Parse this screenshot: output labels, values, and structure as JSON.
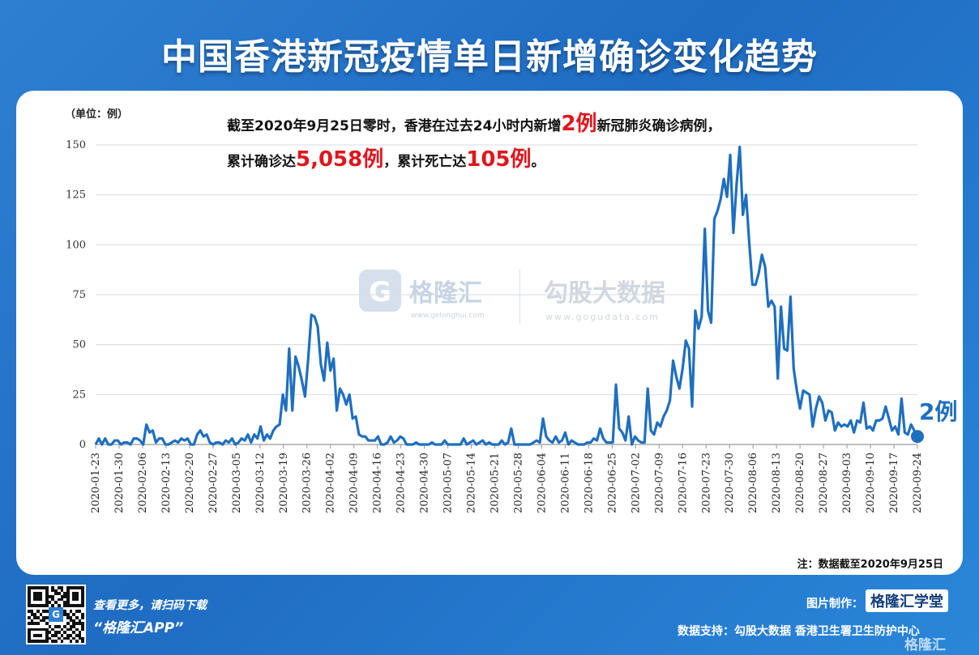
{
  "title": "中国香港新冠疫情单日新增确诊变化趋势",
  "unit_label": "（单位：例）",
  "headline": {
    "line1_pre": "截至2020年9月25日零时，香港在过去24小时内新增",
    "line1_hl": "2例",
    "line1_post": "新冠肺炎确诊病例，",
    "line2_pre": "累计确诊达",
    "line2_hl1": "5,058例",
    "line2_mid": "，累计死亡达",
    "line2_hl2": "105例",
    "line2_post": "。"
  },
  "note": "注：数据截至2020年9月25日",
  "watermark": {
    "g": "G",
    "brand1": "格隆汇",
    "brand1_sub": "www.gelonghui.com",
    "brand2": "勾股大数据",
    "brand2_sub": "www.gogudata.com"
  },
  "footer": {
    "line1": "查看更多，请扫码下载",
    "line2": "“格隆汇APP”",
    "credit_label": "图片制作：",
    "credit_logo": "格隆汇学堂",
    "support": "数据支持：勾股大数据  香港卫生署卫生防护中心",
    "corner": "格隆汇",
    "qr_mark": "G"
  },
  "colors": {
    "line": "#1f6fbf",
    "grid": "#d6dbe2",
    "highlight": "#e0161e",
    "background": "#2e7fd2"
  },
  "chart_data": {
    "type": "line",
    "title": "中国香港新冠疫情单日新增确诊变化趋势",
    "ylabel": "（单位：例）",
    "ylim": [
      0,
      150
    ],
    "yticks": [
      0,
      25,
      50,
      75,
      100,
      125,
      150
    ],
    "xticks": [
      "2020-01-23",
      "2020-01-30",
      "2020-02-06",
      "2020-02-13",
      "2020-02-20",
      "2020-02-27",
      "2020-03-05",
      "2020-03-12",
      "2020-03-19",
      "2020-03-26",
      "2020-04-02",
      "2020-04-09",
      "2020-04-16",
      "2020-04-23",
      "2020-04-30",
      "2020-05-07",
      "2020-05-14",
      "2020-05-21",
      "2020-05-28",
      "2020-06-04",
      "2020-06-11",
      "2020-06-18",
      "2020-06-25",
      "2020-07-02",
      "2020-07-09",
      "2020-07-16",
      "2020-07-23",
      "2020-07-30",
      "2020-08-06",
      "2020-08-13",
      "2020-08-20",
      "2020-08-27",
      "2020-09-03",
      "2020-09-10",
      "2020-09-17",
      "2020-09-24"
    ],
    "x_start": "2020-01-23",
    "x_end": "2020-09-24",
    "grid": true,
    "series": [
      {
        "values": [
          0,
          3,
          0,
          3,
          0,
          0,
          2,
          2,
          0,
          1,
          1,
          0,
          3,
          3,
          2,
          0,
          10,
          6,
          7,
          1,
          3,
          3,
          0,
          0,
          1,
          2,
          1,
          3,
          2,
          3,
          0,
          0,
          5,
          7,
          4,
          5,
          1,
          0,
          1,
          1,
          0,
          2,
          1,
          3,
          0,
          1,
          3,
          2,
          5,
          1,
          5,
          3,
          9,
          2,
          5,
          3,
          7,
          9,
          10,
          25,
          17,
          48,
          17,
          44,
          39,
          32,
          24,
          43,
          65,
          64,
          59,
          40,
          32,
          51,
          37,
          43,
          17,
          28,
          25,
          20,
          25,
          13,
          14,
          5,
          4,
          4,
          2,
          2,
          2,
          4,
          0,
          0,
          1,
          4,
          1,
          2,
          4,
          3,
          0,
          0,
          0,
          1,
          0,
          0,
          0,
          0,
          1,
          0,
          0,
          0,
          2,
          0,
          0,
          0,
          0,
          0,
          3,
          0,
          1,
          2,
          0,
          1,
          2,
          0,
          1,
          0,
          0,
          0,
          2,
          0,
          1,
          8,
          0,
          0,
          0,
          0,
          0,
          0,
          1,
          2,
          1,
          13,
          4,
          2,
          1,
          4,
          1,
          2,
          6,
          0,
          2,
          1,
          0,
          0,
          0,
          1,
          1,
          3,
          2,
          8,
          3,
          1,
          1,
          1,
          30,
          8,
          6,
          2,
          14,
          0,
          4,
          2,
          1,
          1,
          28,
          7,
          5,
          11,
          9,
          14,
          17,
          22,
          42,
          34,
          28,
          38,
          52,
          48,
          19,
          67,
          58,
          64,
          108,
          67,
          61,
          113,
          117,
          123,
          133,
          124,
          145,
          106,
          130,
          149,
          115,
          125,
          101,
          80,
          80,
          86,
          95,
          89,
          69,
          72,
          69,
          33,
          69,
          48,
          47,
          74,
          38,
          27,
          18,
          27,
          26,
          25,
          9,
          18,
          24,
          21,
          12,
          17,
          16,
          7,
          11,
          9,
          10,
          9,
          12,
          6,
          12,
          11,
          21,
          8,
          9,
          7,
          12,
          12,
          13,
          19,
          13,
          7,
          9,
          5,
          23,
          6,
          5,
          10,
          7,
          2
        ]
      }
    ],
    "annotation": "2例"
  }
}
